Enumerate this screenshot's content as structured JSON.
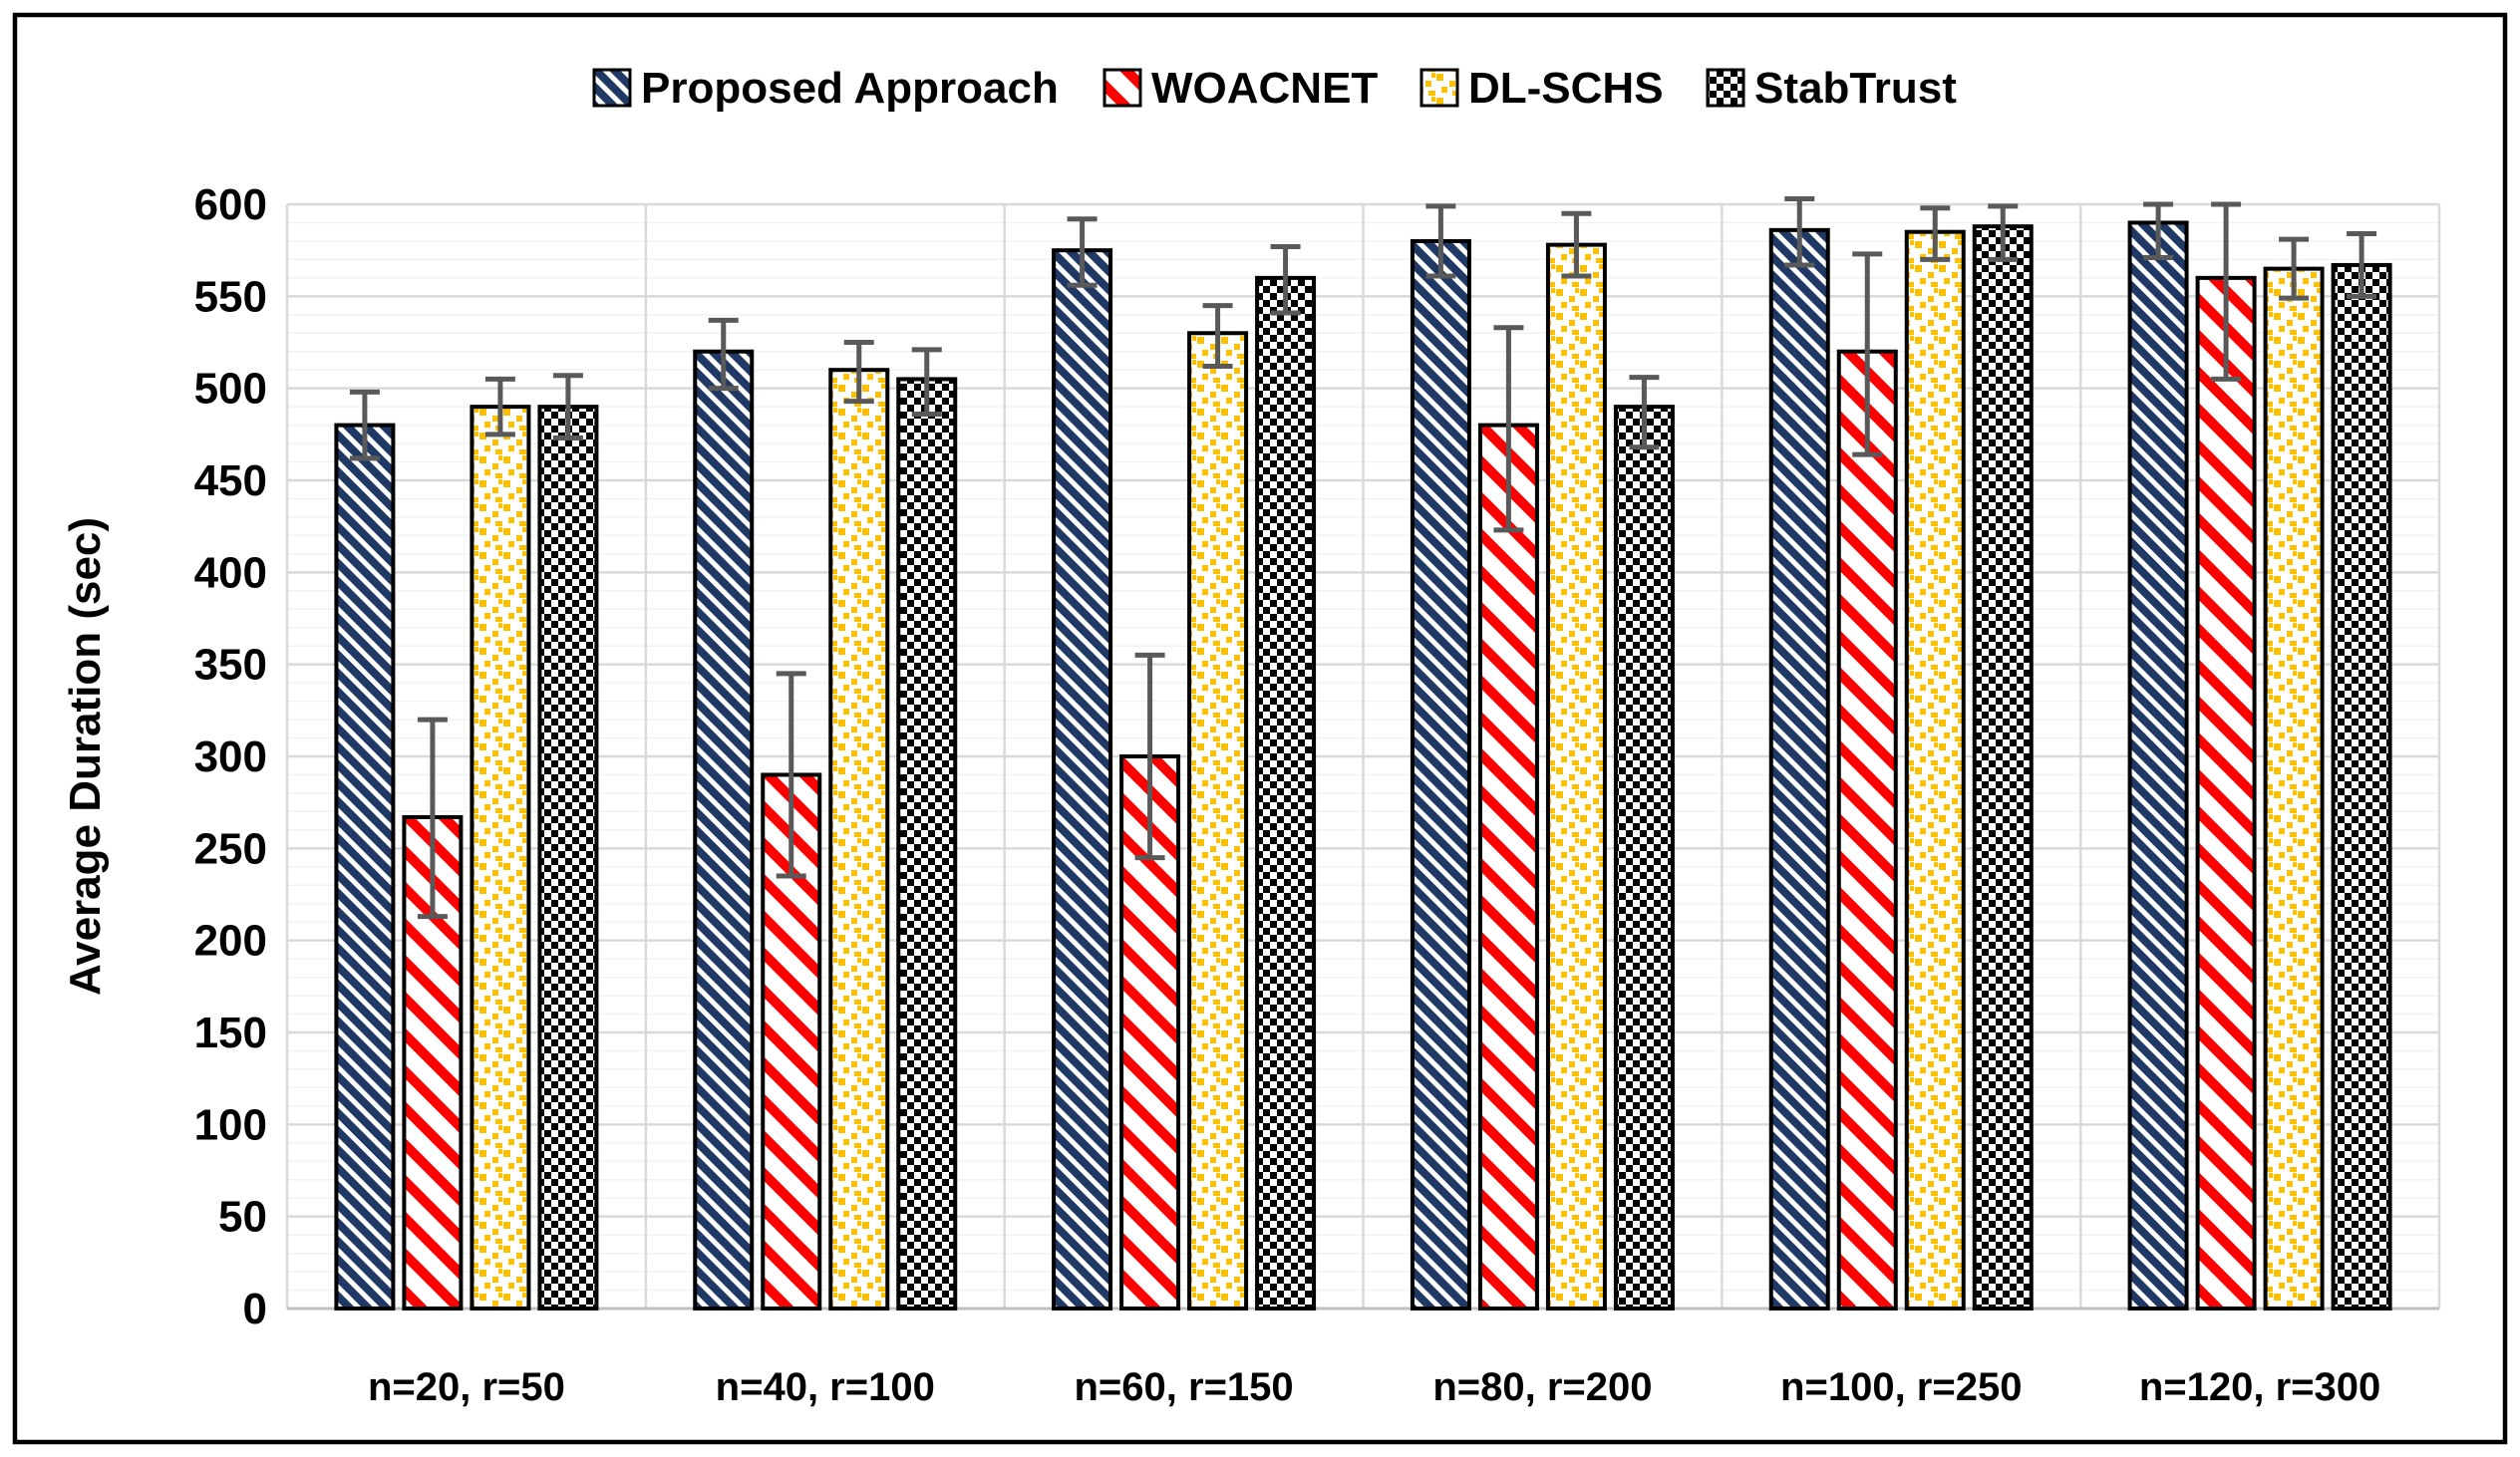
{
  "figure": {
    "background": "#FFFFFF",
    "border_color": "#000000"
  },
  "chart_data": {
    "type": "bar",
    "title": "",
    "xlabel": "",
    "ylabel": "Average Duration (sec)",
    "ylim": [
      0,
      600
    ],
    "yticks": [
      0,
      50,
      100,
      150,
      200,
      250,
      300,
      350,
      400,
      450,
      500,
      550,
      600
    ],
    "ytick_step": 50,
    "minor_ytick_step": 10,
    "grid": "horizontal major+minor, vertical category separators",
    "legend_position": "top-center",
    "categories": [
      "n=20, r=50",
      "n=40, r=100",
      "n=60, r=150",
      "n=80, r=200",
      "n=100, r=250",
      "n=120, r=300"
    ],
    "series": [
      {
        "name": "Proposed Approach",
        "color": "#1F3864",
        "pattern": "diagonal-stripes-navy",
        "values": [
          480,
          520,
          575,
          580,
          586,
          590
        ],
        "err_up": [
          18,
          17,
          17,
          19,
          17,
          10
        ],
        "err_down": [
          18,
          20,
          19,
          19,
          19,
          19
        ]
      },
      {
        "name": "WOACNET",
        "color": "#FF0000",
        "pattern": "diagonal-stripes-red-wide",
        "values": [
          267,
          290,
          300,
          480,
          520,
          560
        ],
        "err_up": [
          53,
          55,
          55,
          53,
          53,
          40
        ],
        "err_down": [
          54,
          55,
          55,
          57,
          56,
          55
        ]
      },
      {
        "name": "DL-SCHS",
        "color": "#FFC000",
        "pattern": "confetti-squares-gold",
        "values": [
          490,
          510,
          530,
          578,
          585,
          565
        ],
        "err_up": [
          15,
          15,
          15,
          17,
          13,
          16
        ],
        "err_down": [
          15,
          17,
          18,
          17,
          15,
          16
        ]
      },
      {
        "name": "StabTrust",
        "color": "#000000",
        "pattern": "checkerboard-black",
        "values": [
          490,
          505,
          560,
          490,
          588,
          567
        ],
        "err_up": [
          17,
          16,
          17,
          16,
          11,
          17
        ],
        "err_down": [
          17,
          19,
          19,
          22,
          18,
          17
        ]
      }
    ],
    "error_bar_color": "#595959",
    "bar_outline_color": "#000000",
    "gridline_major_color": "#D9D9D9",
    "gridline_minor_color": "#F2F2F2",
    "axis_line_color": "#BFBFBF"
  }
}
